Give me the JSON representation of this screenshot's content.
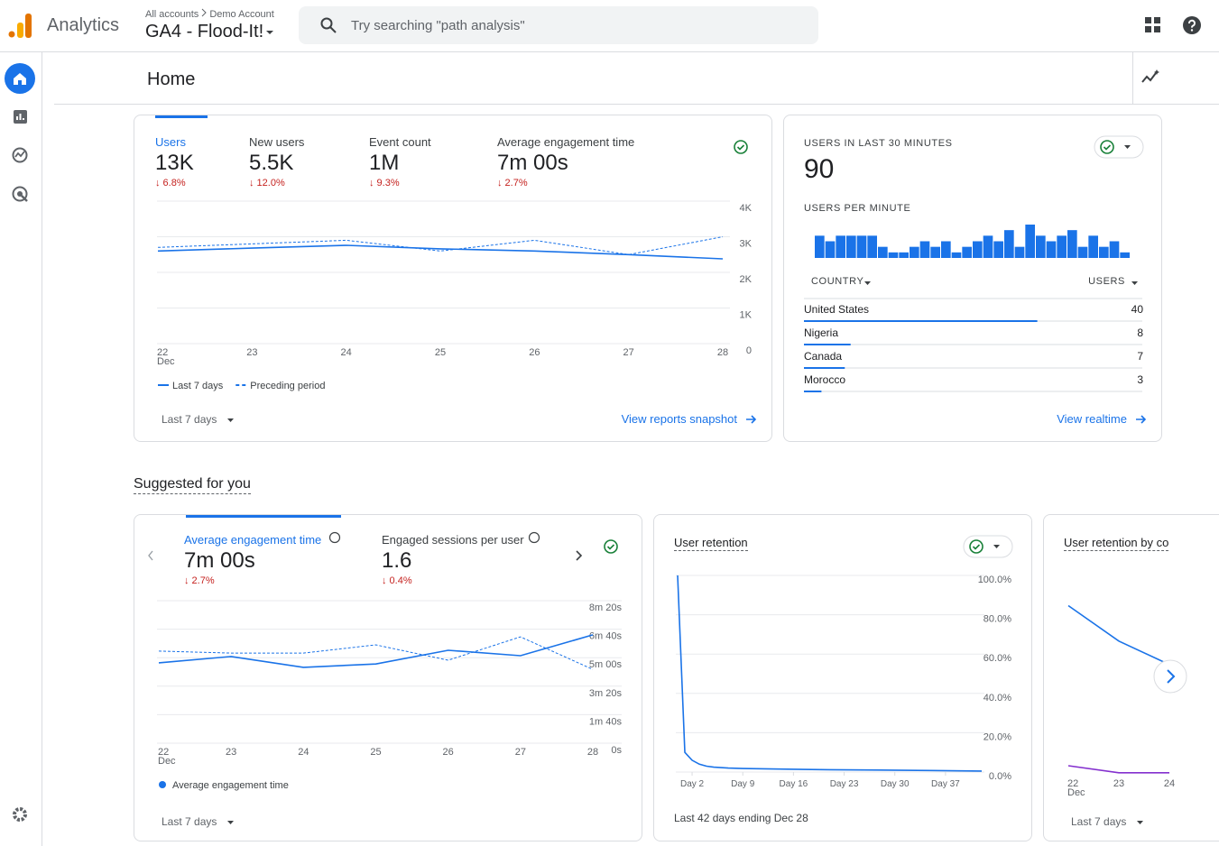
{
  "header": {
    "product": "Analytics",
    "breadcrumb": [
      "All accounts",
      "Demo Account"
    ],
    "property": "GA4 - Flood-It!",
    "search_placeholder": "Try searching \"path analysis\""
  },
  "page_title": "Home",
  "overview": {
    "metrics": [
      {
        "label": "Users",
        "value": "13K",
        "change": "↓ 6.8%"
      },
      {
        "label": "New users",
        "value": "5.5K",
        "change": "↓ 12.0%"
      },
      {
        "label": "Event count",
        "value": "1M",
        "change": "↓ 9.3%"
      },
      {
        "label": "Average engagement time",
        "value": "7m 00s",
        "change": "↓ 2.7%"
      }
    ],
    "chart_data": {
      "type": "line",
      "categories": [
        "22",
        "23",
        "24",
        "25",
        "26",
        "27",
        "28"
      ],
      "month": "Dec",
      "ylim": [
        0,
        4000
      ],
      "yticks": [
        0,
        {
          "value": 1000,
          "label": "1K"
        },
        {
          "value": 2000,
          "label": "2K"
        },
        {
          "value": 3000,
          "label": "3K"
        },
        {
          "value": 4000,
          "label": "4K"
        }
      ],
      "grid": true,
      "series": [
        {
          "name": "Last 7 days",
          "color": "#1a73e8",
          "style": "solid",
          "values": [
            2600,
            2680,
            2760,
            2660,
            2600,
            2500,
            2380
          ]
        },
        {
          "name": "Preceding period",
          "color": "#1a73e8",
          "style": "dashed",
          "values": [
            2700,
            2800,
            2900,
            2600,
            2900,
            2500,
            3000
          ]
        }
      ]
    },
    "date_range": "Last 7 days",
    "link": "View reports snapshot"
  },
  "realtime": {
    "title": "USERS IN LAST 30 MINUTES",
    "value": "90",
    "subtitle": "USERS PER MINUTE",
    "chart_data": {
      "type": "bar",
      "color": "#1a73e8",
      "values": [
        4,
        3,
        4,
        4,
        4,
        4,
        2,
        1,
        1,
        2,
        3,
        2,
        3,
        1,
        2,
        3,
        4,
        3,
        5,
        2,
        6,
        4,
        3,
        4,
        5,
        2,
        4,
        2,
        3,
        1
      ]
    },
    "table": {
      "columns": [
        "COUNTRY",
        "USERS"
      ],
      "rows": [
        [
          "United States",
          40
        ],
        [
          "Nigeria",
          8
        ],
        [
          "Canada",
          7
        ],
        [
          "Morocco",
          3
        ]
      ]
    },
    "link": "View realtime"
  },
  "suggested": {
    "title": "Suggested for you",
    "engagement": {
      "metrics": [
        {
          "label": "Average engagement time",
          "value": "7m 00s",
          "change": "↓ 2.7%"
        },
        {
          "label": "Engaged sessions per user",
          "value": "1.6",
          "change": "↓ 0.4%"
        }
      ],
      "chart_data": {
        "type": "line",
        "categories": [
          "22",
          "23",
          "24",
          "25",
          "26",
          "27",
          "28"
        ],
        "month": "Dec",
        "ylim": [
          0,
          500
        ],
        "yticks": [
          {
            "value": 0,
            "label": "0s"
          },
          {
            "value": 100,
            "label": "1m 40s"
          },
          {
            "value": 200,
            "label": "3m 20s"
          },
          {
            "value": 300,
            "label": "5m 00s"
          },
          {
            "value": 400,
            "label": "6m 40s"
          },
          {
            "value": 500,
            "label": "8m 20s"
          }
        ],
        "grid": true,
        "series": [
          {
            "name": "Average engagement time",
            "color": "#1a73e8",
            "style": "solid",
            "values": [
              282,
              304,
              266,
              278,
              326,
              307,
              380
            ]
          },
          {
            "color": "#1a73e8",
            "style": "dashed",
            "values": [
              323,
              316,
              316,
              345,
              291,
              373,
              259
            ]
          }
        ]
      },
      "date_range": "Last 7 days"
    },
    "retention": {
      "title": "User retention",
      "chart_data": {
        "type": "line",
        "x": [
          0,
          1,
          2,
          3,
          4,
          5,
          7,
          9,
          14,
          21,
          28,
          35,
          42
        ],
        "xlim": [
          0,
          42
        ],
        "xticks": [
          {
            "value": 2,
            "label": "Day 2"
          },
          {
            "value": 9,
            "label": "Day 9"
          },
          {
            "value": 16,
            "label": "Day 16"
          },
          {
            "value": 23,
            "label": "Day 23"
          },
          {
            "value": 30,
            "label": "Day 30"
          },
          {
            "value": 37,
            "label": "Day 37"
          }
        ],
        "ylim": [
          0,
          100
        ],
        "yticks": [
          {
            "value": 0,
            "label": "0.0%"
          },
          {
            "value": 20,
            "label": "20.0%"
          },
          {
            "value": 40,
            "label": "40.0%"
          },
          {
            "value": 60,
            "label": "60.0%"
          },
          {
            "value": 80,
            "label": "80.0%"
          },
          {
            "value": 100,
            "label": "100.0%"
          }
        ],
        "grid": true,
        "series": [
          {
            "color": "#1a73e8",
            "style": "solid",
            "values": [
              100,
              10,
              6,
              4,
              3,
              2.5,
              2,
              1.8,
              1.5,
              1.2,
              1,
              0.8,
              0.5
            ]
          }
        ]
      },
      "footer": "Last 42 days ending Dec 28"
    },
    "cohort": {
      "title": "User retention by cohort",
      "chart_data": {
        "type": "line",
        "categories": [
          "22",
          "23",
          "24"
        ],
        "month": "Dec",
        "ylim": [
          0,
          100
        ],
        "series": [
          {
            "color": "#1a73e8",
            "style": "solid",
            "values": [
              86,
              68,
              56
            ]
          },
          {
            "color": "#8430ce",
            "style": "solid",
            "values": [
              4.6,
              1,
              1
            ]
          }
        ]
      },
      "date_range": "Last 7 days"
    }
  }
}
